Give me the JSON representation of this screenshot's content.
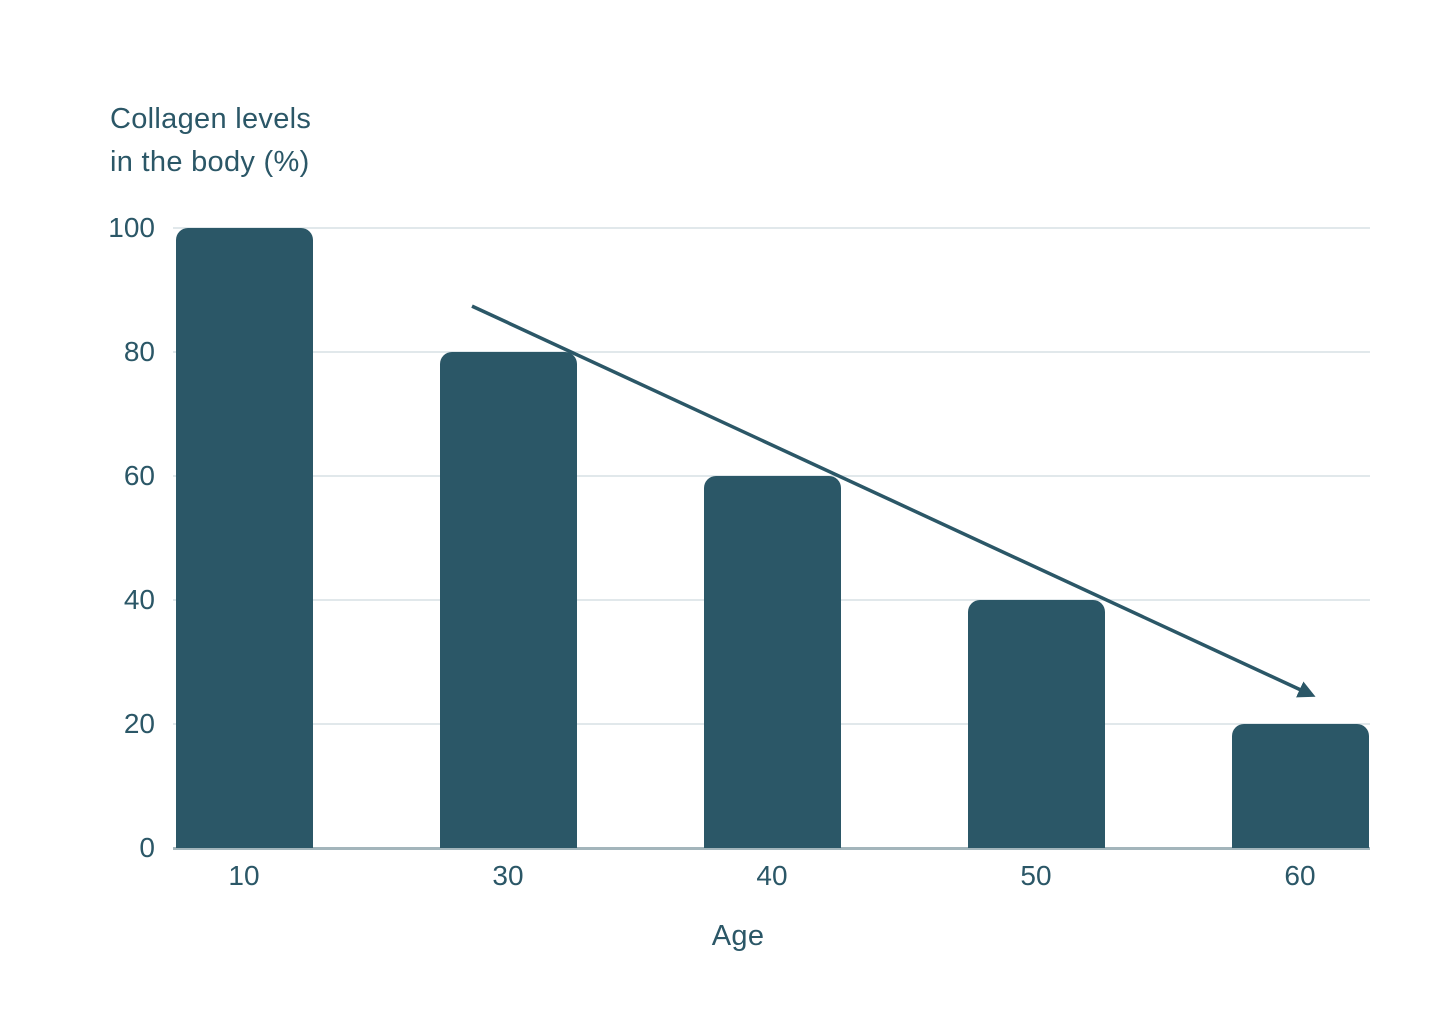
{
  "chart_data": {
    "type": "bar",
    "title_lines": [
      "Collagen levels",
      "in the body (%)"
    ],
    "xlabel": "Age",
    "ylabel": "Collagen levels in the body (%)",
    "categories": [
      "10",
      "30",
      "40",
      "50",
      "60"
    ],
    "values": [
      100,
      80,
      60,
      40,
      20
    ],
    "y_ticks": [
      0,
      20,
      40,
      60,
      80,
      100
    ],
    "ylim": [
      0,
      100
    ],
    "grid": true,
    "legend": false,
    "annotation_arrow": {
      "x1_frac": 0.2498,
      "y1_value": 87.4,
      "x2_frac": 0.9566,
      "y2_value": 24.2
    },
    "colors": {
      "bar": "#2b5767",
      "text": "#2b5767",
      "gridline": "#e1e8eb",
      "baseline": "#a3b5bb",
      "arrow": "#2b5767"
    }
  }
}
